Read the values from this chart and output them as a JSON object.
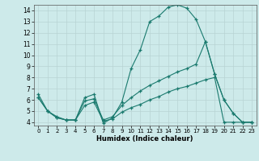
{
  "xlabel": "Humidex (Indice chaleur)",
  "xlim": [
    -0.5,
    23.5
  ],
  "ylim": [
    3.7,
    14.5
  ],
  "yticks": [
    4,
    5,
    6,
    7,
    8,
    9,
    10,
    11,
    12,
    13,
    14
  ],
  "xticks": [
    0,
    1,
    2,
    3,
    4,
    5,
    6,
    7,
    8,
    9,
    10,
    11,
    12,
    13,
    14,
    15,
    16,
    17,
    18,
    19,
    20,
    21,
    22,
    23
  ],
  "bg_color": "#cdeaea",
  "grid_color": "#b8d4d4",
  "line_color": "#1a7a6e",
  "line1_x": [
    0,
    1,
    2,
    3,
    4,
    5,
    6,
    7,
    8,
    9,
    10,
    11,
    12,
    13,
    14,
    15,
    16,
    17,
    18,
    19,
    20,
    21,
    22,
    23
  ],
  "line1_y": [
    6.5,
    5.0,
    4.5,
    4.2,
    4.2,
    6.2,
    6.5,
    3.9,
    4.4,
    5.8,
    8.8,
    10.5,
    13.0,
    13.5,
    14.3,
    14.5,
    14.2,
    13.2,
    11.2,
    8.3,
    6.0,
    4.8,
    4.0,
    4.0
  ],
  "line2_x": [
    0,
    1,
    2,
    3,
    4,
    5,
    6,
    7,
    8,
    9,
    10,
    11,
    12,
    13,
    14,
    15,
    16,
    17,
    18,
    19,
    20,
    21,
    22,
    23
  ],
  "line2_y": [
    6.2,
    5.0,
    4.4,
    4.2,
    4.2,
    5.9,
    6.1,
    4.2,
    4.5,
    5.5,
    6.2,
    6.8,
    7.3,
    7.7,
    8.1,
    8.5,
    8.8,
    9.2,
    11.2,
    8.3,
    6.0,
    4.8,
    4.0,
    4.0
  ],
  "line3_x": [
    0,
    1,
    2,
    3,
    4,
    5,
    6,
    7,
    8,
    9,
    10,
    11,
    12,
    13,
    14,
    15,
    16,
    17,
    18,
    19,
    20,
    21,
    22,
    23
  ],
  "line3_y": [
    6.2,
    5.0,
    4.4,
    4.2,
    4.2,
    5.5,
    5.8,
    4.1,
    4.3,
    4.9,
    5.3,
    5.6,
    6.0,
    6.3,
    6.7,
    7.0,
    7.2,
    7.5,
    7.8,
    8.0,
    4.0,
    4.0,
    4.0,
    4.0
  ]
}
